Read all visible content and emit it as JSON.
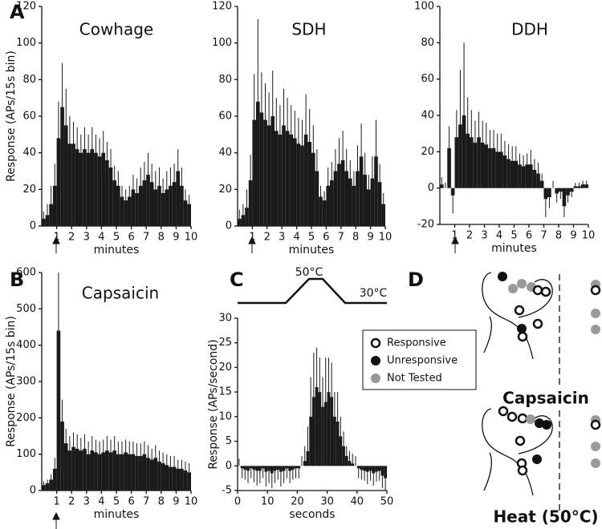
{
  "panel_labels": [
    "A",
    "B",
    "C",
    "D"
  ],
  "chart_data": [
    {
      "type": "histogram",
      "title": "Cowhage",
      "y_label": "Response (APs/15s bin)",
      "x_label": "minutes",
      "color": "#1a1a1a",
      "xlim": [
        0,
        10
      ],
      "xticks": [
        1,
        2,
        3,
        4,
        5,
        6,
        7,
        8,
        9,
        10
      ],
      "ylim": [
        0,
        120
      ],
      "yticks": [
        0,
        20,
        40,
        60,
        80,
        100,
        120
      ],
      "bins": [
        0,
        0.25,
        0.5,
        0.75,
        1,
        1.25,
        1.5,
        1.75,
        2,
        2.25,
        2.5,
        2.75,
        3,
        3.25,
        3.5,
        3.75,
        4,
        4.25,
        4.5,
        4.75,
        5,
        5.25,
        5.5,
        5.75,
        6,
        6.25,
        6.5,
        6.75,
        7,
        7.25,
        7.5,
        7.75,
        8,
        8.25,
        8.5,
        8.75,
        9,
        9.25,
        9.5,
        9.75,
        10
      ],
      "values": [
        4,
        6,
        12,
        22,
        48,
        65,
        55,
        45,
        45,
        42,
        40,
        42,
        40,
        42,
        40,
        38,
        40,
        36,
        32,
        25,
        22,
        16,
        14,
        16,
        20,
        18,
        22,
        25,
        28,
        24,
        20,
        22,
        18,
        20,
        22,
        24,
        30,
        22,
        14,
        12
      ],
      "errors": [
        4,
        6,
        10,
        12,
        20,
        24,
        20,
        15,
        12,
        12,
        10,
        12,
        10,
        12,
        10,
        10,
        12,
        10,
        10,
        8,
        8,
        6,
        6,
        6,
        8,
        8,
        10,
        10,
        12,
        10,
        10,
        10,
        8,
        10,
        10,
        10,
        12,
        10,
        6,
        5
      ]
    },
    {
      "type": "histogram",
      "title": "SDH",
      "x_label": "minutes",
      "color": "#1a1a1a",
      "xlim": [
        0,
        10
      ],
      "xticks": [
        1,
        2,
        3,
        4,
        5,
        6,
        7,
        8,
        9,
        10
      ],
      "ylim": [
        0,
        120
      ],
      "yticks": [
        0,
        20,
        40,
        60,
        80,
        100,
        120
      ],
      "bins": [
        0,
        0.25,
        0.5,
        0.75,
        1,
        1.25,
        1.5,
        1.75,
        2,
        2.25,
        2.5,
        2.75,
        3,
        3.25,
        3.5,
        3.75,
        4,
        4.25,
        4.5,
        4.75,
        5,
        5.25,
        5.5,
        5.75,
        6,
        6.25,
        6.5,
        6.75,
        7,
        7.25,
        7.5,
        7.75,
        8,
        8.25,
        8.5,
        8.75,
        9,
        9.25,
        9.5,
        9.75,
        10
      ],
      "values": [
        4,
        6,
        10,
        25,
        58,
        68,
        62,
        58,
        55,
        60,
        52,
        50,
        55,
        52,
        50,
        48,
        45,
        44,
        50,
        46,
        40,
        30,
        16,
        14,
        22,
        25,
        30,
        34,
        36,
        30,
        26,
        22,
        30,
        38,
        28,
        20,
        26,
        38,
        24,
        12
      ],
      "errors": [
        5,
        6,
        10,
        14,
        25,
        45,
        22,
        20,
        18,
        25,
        18,
        16,
        20,
        18,
        16,
        15,
        14,
        14,
        22,
        18,
        15,
        12,
        6,
        5,
        10,
        10,
        12,
        14,
        16,
        12,
        10,
        8,
        14,
        18,
        12,
        8,
        12,
        20,
        10,
        6
      ]
    },
    {
      "type": "histogram",
      "title": "DDH",
      "x_label": "minutes",
      "color": "#1a1a1a",
      "xlim": [
        0,
        10
      ],
      "xticks": [
        1,
        2,
        3,
        4,
        5,
        6,
        7,
        8,
        9,
        10
      ],
      "ylim": [
        -20,
        100
      ],
      "yticks": [
        -20,
        0,
        20,
        40,
        60,
        80,
        100
      ],
      "bins": [
        0,
        0.25,
        0.5,
        0.75,
        1,
        1.25,
        1.5,
        1.75,
        2,
        2.25,
        2.5,
        2.75,
        3,
        3.25,
        3.5,
        3.75,
        4,
        4.25,
        4.5,
        4.75,
        5,
        5.25,
        5.5,
        5.75,
        6,
        6.25,
        6.5,
        6.75,
        7,
        7.25,
        7.5,
        7.75,
        8,
        8.25,
        8.5,
        8.75,
        9,
        9.25,
        9.5,
        9.75,
        10
      ],
      "values": [
        2,
        0,
        22,
        -4,
        28,
        35,
        40,
        30,
        28,
        25,
        28,
        25,
        24,
        22,
        22,
        20,
        20,
        18,
        16,
        15,
        15,
        13,
        12,
        13,
        13,
        10,
        8,
        4,
        -6,
        -5,
        0,
        -3,
        -2,
        -10,
        -4,
        -2,
        1,
        1,
        2,
        2
      ],
      "errors": [
        4,
        3,
        12,
        10,
        15,
        30,
        40,
        20,
        15,
        12,
        14,
        12,
        12,
        10,
        10,
        10,
        10,
        8,
        8,
        8,
        8,
        6,
        6,
        6,
        8,
        6,
        6,
        4,
        10,
        6,
        4,
        5,
        4,
        6,
        4,
        3,
        2,
        2,
        2,
        2
      ]
    },
    {
      "type": "histogram",
      "title": "Capsaicin",
      "y_label": "Response (APs/15s bin)",
      "x_label": "minutes",
      "color": "#1a1a1a",
      "xlim": [
        0,
        10
      ],
      "xticks": [
        1,
        2,
        3,
        4,
        5,
        6,
        7,
        8,
        9,
        10
      ],
      "ylim": [
        0,
        600
      ],
      "yticks": [
        0,
        100,
        200,
        300,
        400,
        500,
        600
      ],
      "bins": [
        0,
        0.25,
        0.5,
        0.75,
        1,
        1.25,
        1.5,
        1.75,
        2,
        2.25,
        2.5,
        2.75,
        3,
        3.25,
        3.5,
        3.75,
        4,
        4.25,
        4.5,
        4.75,
        5,
        5.25,
        5.5,
        5.75,
        6,
        6.25,
        6.5,
        6.75,
        7,
        7.25,
        7.5,
        7.75,
        8,
        8.25,
        8.5,
        8.75,
        9,
        9.25,
        9.5,
        9.75,
        10
      ],
      "values": [
        15,
        20,
        30,
        60,
        440,
        190,
        130,
        110,
        120,
        115,
        110,
        115,
        100,
        110,
        105,
        100,
        105,
        110,
        105,
        110,
        100,
        100,
        105,
        100,
        100,
        95,
        95,
        100,
        90,
        85,
        90,
        80,
        75,
        70,
        65,
        65,
        60,
        60,
        55,
        50
      ],
      "errors": [
        10,
        10,
        15,
        30,
        160,
        60,
        40,
        40,
        40,
        40,
        35,
        40,
        35,
        40,
        35,
        35,
        35,
        40,
        35,
        40,
        35,
        35,
        35,
        35,
        35,
        35,
        35,
        35,
        35,
        30,
        35,
        30,
        30,
        30,
        30,
        30,
        25,
        25,
        25,
        25
      ]
    },
    {
      "type": "histogram",
      "y_label": "Response (APs/second)",
      "x_label": "seconds",
      "color": "#1a1a1a",
      "annotations": [
        "50°C",
        "30°C"
      ],
      "xlim": [
        0,
        50
      ],
      "xticks": [
        0,
        10,
        20,
        30,
        40,
        50
      ],
      "ylim": [
        -5,
        30
      ],
      "yticks": [
        -5,
        0,
        5,
        10,
        15,
        20,
        25,
        30
      ],
      "bins": [
        0,
        1,
        2,
        3,
        4,
        5,
        6,
        7,
        8,
        9,
        10,
        11,
        12,
        13,
        14,
        15,
        16,
        17,
        18,
        19,
        20,
        21,
        22,
        23,
        24,
        25,
        26,
        27,
        28,
        29,
        30,
        31,
        32,
        33,
        34,
        35,
        36,
        37,
        38,
        39,
        40,
        41,
        42,
        43,
        44,
        45,
        46,
        47,
        48,
        49,
        50
      ],
      "values": [
        0,
        -0.5,
        -0.8,
        -1,
        -0.5,
        -0.8,
        -1,
        -1,
        -0.5,
        -1.2,
        -1,
        -1.5,
        -1,
        -0.8,
        -1.2,
        -1,
        -0.5,
        -1,
        -0.8,
        -0.5,
        -0.5,
        0,
        1,
        3,
        10,
        14,
        16,
        15,
        12,
        13,
        15,
        14,
        10,
        9,
        6,
        4,
        2,
        1,
        0.5,
        0,
        -0.5,
        -0.8,
        -1,
        -1.2,
        -1,
        -1.5,
        -1.2,
        -1,
        -2,
        -2.5
      ],
      "errors": [
        1.5,
        2,
        2,
        2.5,
        2,
        2.5,
        3,
        2.5,
        2,
        3,
        2.5,
        3,
        2.5,
        2,
        3,
        2.5,
        2,
        2.5,
        2,
        2,
        2,
        2,
        3,
        5,
        8,
        9,
        8,
        7,
        6,
        9,
        7,
        7,
        5,
        6,
        4,
        3,
        2,
        2,
        2,
        2,
        2,
        2,
        2,
        2.5,
        2,
        2.5,
        2,
        2,
        2.5,
        2.5
      ]
    }
  ],
  "panel_d": {
    "legend": [
      "Responsive",
      "Unresponsive",
      "Not Tested"
    ],
    "labels": [
      "Capsaicin",
      "Heat (50°C)"
    ]
  }
}
